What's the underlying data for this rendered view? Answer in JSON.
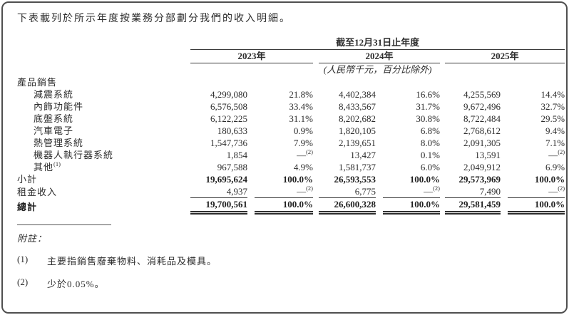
{
  "page": {
    "intro": "下表載列於所示年度按業務分部劃分我們的收入明細。"
  },
  "table": {
    "period_header": "截至12月31日止年度",
    "unit_note": "(人民幣千元，百分比除外)",
    "years": [
      "2023年",
      "2024年",
      "2025年"
    ],
    "section_label": "產品銷售",
    "rows": [
      {
        "label": "減震系統",
        "v": [
          "4,299,080",
          "21.8%",
          "4,402,384",
          "16.6%",
          "4,255,569",
          "14.4%"
        ]
      },
      {
        "label": "內飾功能件",
        "v": [
          "6,576,508",
          "33.4%",
          "8,433,567",
          "31.7%",
          "9,672,496",
          "32.7%"
        ]
      },
      {
        "label": "底盤系統",
        "v": [
          "6,122,225",
          "31.1%",
          "8,202,682",
          "30.8%",
          "8,722,484",
          "29.5%"
        ]
      },
      {
        "label": "汽車電子",
        "v": [
          "180,633",
          "0.9%",
          "1,820,105",
          "6.8%",
          "2,768,612",
          "9.4%"
        ]
      },
      {
        "label": "熱管理系統",
        "v": [
          "1,547,736",
          "7.9%",
          "2,139,651",
          "8.0%",
          "2,091,305",
          "7.1%"
        ]
      },
      {
        "label": "機器人執行器系統",
        "v": [
          "1,854",
          "—(2)",
          "13,427",
          "0.1%",
          "13,591",
          "—(2)"
        ]
      },
      {
        "label": "其他(1)",
        "v": [
          "967,588",
          "4.9%",
          "1,581,737",
          "6.0%",
          "2,049,912",
          "6.9%"
        ]
      }
    ],
    "subtotal": {
      "label": "小計",
      "v": [
        "19,695,624",
        "100.0%",
        "26,593,553",
        "100.0%",
        "29,573,969",
        "100.0%"
      ]
    },
    "rental": {
      "label": "租金收入",
      "v": [
        "4,937",
        "—(2)",
        "6,775",
        "—(2)",
        "7,490",
        "—(2)"
      ]
    },
    "total": {
      "label": "總計",
      "v": [
        "19,700,561",
        "100.0%",
        "26,600,328",
        "100.0%",
        "29,581,459",
        "100.0%"
      ]
    }
  },
  "notes": {
    "heading": "附註：",
    "items": [
      {
        "num": "(1)",
        "text": "主要指銷售廢棄物料、消耗品及模具。"
      },
      {
        "num": "(2)",
        "text": "少於0.05%。"
      }
    ]
  }
}
